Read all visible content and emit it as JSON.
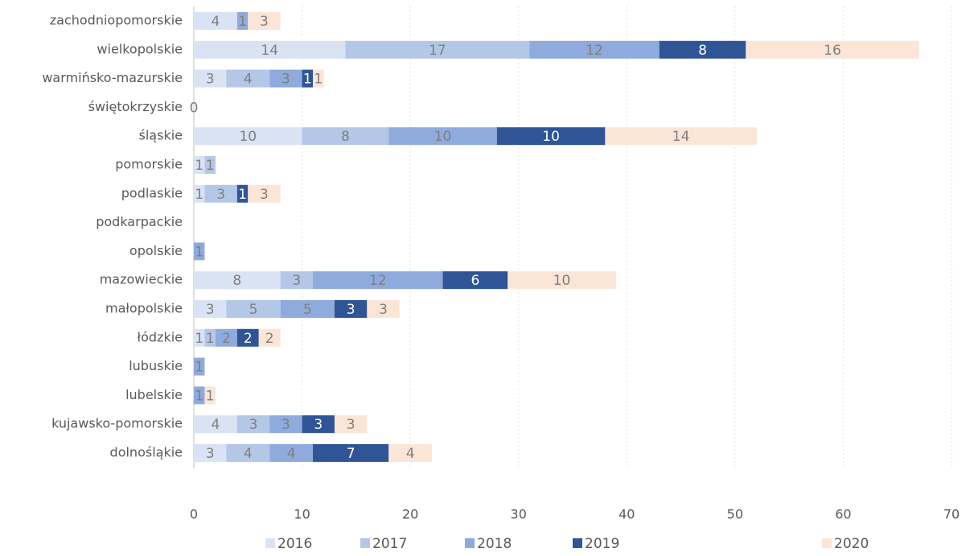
{
  "chart_data": {
    "type": "stacked-barh",
    "categories": [
      "zachodniopomorskie",
      "wielkopolskie",
      "warmińsko-mazurskie",
      "świętokrzyskie",
      "śląskie",
      "pomorskie",
      "podlaskie",
      "podkarpackie",
      "opolskie",
      "mazowieckie",
      "małopolskie",
      "łódzkie",
      "lubuskie",
      "lubelskie",
      "kujawsko-pomorskie",
      "dolnośląkie"
    ],
    "series": [
      {
        "name": "2016",
        "color": "#dae3f3",
        "values": [
          4,
          14,
          3,
          0,
          10,
          1,
          1,
          null,
          null,
          8,
          3,
          1,
          null,
          null,
          4,
          3
        ]
      },
      {
        "name": "2017",
        "color": "#b4c7e7",
        "values": [
          null,
          17,
          4,
          null,
          8,
          1,
          3,
          null,
          null,
          3,
          5,
          1,
          null,
          null,
          3,
          4
        ]
      },
      {
        "name": "2018",
        "color": "#8faadc",
        "values": [
          1,
          12,
          3,
          null,
          10,
          null,
          null,
          null,
          1,
          12,
          5,
          2,
          1,
          1,
          3,
          4
        ]
      },
      {
        "name": "2019",
        "color": "#2f5597",
        "values": [
          null,
          8,
          1,
          null,
          10,
          null,
          1,
          null,
          null,
          6,
          3,
          2,
          null,
          null,
          3,
          7
        ]
      },
      {
        "name": "2020",
        "color": "#fbe5d6",
        "values": [
          3,
          16,
          1,
          null,
          14,
          null,
          3,
          null,
          null,
          10,
          3,
          2,
          null,
          1,
          3,
          4
        ]
      }
    ],
    "xlim": [
      0,
      70
    ],
    "xticks": [
      0,
      10,
      20,
      30,
      40,
      50,
      60,
      70
    ],
    "grid": true,
    "legend": "bottom"
  }
}
